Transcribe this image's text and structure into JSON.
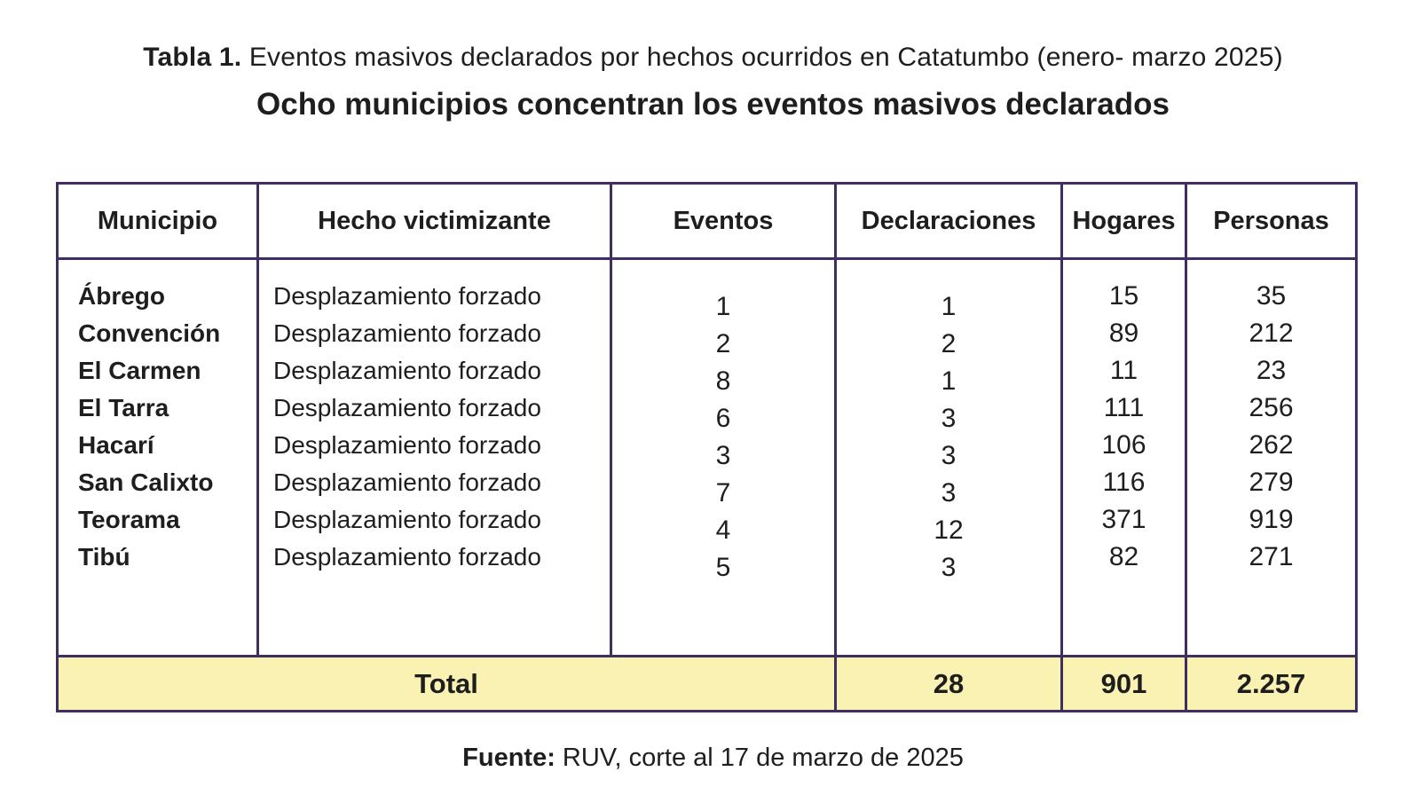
{
  "title": {
    "label": "Tabla 1.",
    "text": " Eventos masivos declarados por hechos ocurridos en Catatumbo (enero- marzo 2025)"
  },
  "subtitle": "Ocho municipios concentran los eventos masivos declarados",
  "table": {
    "columns": [
      "Municipio",
      "Hecho victimizante",
      "Eventos",
      "Declaraciones",
      "Hogares",
      "Personas"
    ],
    "rows": [
      {
        "municipio": "Ábrego",
        "hecho": "Desplazamiento forzado",
        "eventos": "1",
        "declaraciones": "1",
        "hogares": "15",
        "personas": "35"
      },
      {
        "municipio": "Convención",
        "hecho": "Desplazamiento forzado",
        "eventos": "2",
        "declaraciones": "2",
        "hogares": "89",
        "personas": "212"
      },
      {
        "municipio": "El Carmen",
        "hecho": "Desplazamiento forzado",
        "eventos": "8",
        "declaraciones": "1",
        "hogares": "11",
        "personas": "23"
      },
      {
        "municipio": "El Tarra",
        "hecho": "Desplazamiento forzado",
        "eventos": "6",
        "declaraciones": "3",
        "hogares": "111",
        "personas": "256"
      },
      {
        "municipio": "Hacarí",
        "hecho": "Desplazamiento forzado",
        "eventos": "3",
        "declaraciones": "3",
        "hogares": "106",
        "personas": "262"
      },
      {
        "municipio": "San Calixto",
        "hecho": "Desplazamiento forzado",
        "eventos": "7",
        "declaraciones": "3",
        "hogares": "116",
        "personas": "279"
      },
      {
        "municipio": "Teorama",
        "hecho": "Desplazamiento forzado",
        "eventos": "4",
        "declaraciones": "12",
        "hogares": "371",
        "personas": "919"
      },
      {
        "municipio": "Tibú",
        "hecho": "Desplazamiento forzado",
        "eventos": "5",
        "declaraciones": "3",
        "hogares": "82",
        "personas": "271"
      }
    ],
    "total": {
      "label": "Total",
      "declaraciones": "28",
      "hogares": "901",
      "personas": "2.257"
    }
  },
  "footer": {
    "label": "Fuente:",
    "text": " RUV, corte al 17 de marzo de 2025"
  },
  "colors": {
    "border_purple": "#3e2f60",
    "total_row_background": "#faf2b2",
    "text": "#1e1e1e"
  }
}
